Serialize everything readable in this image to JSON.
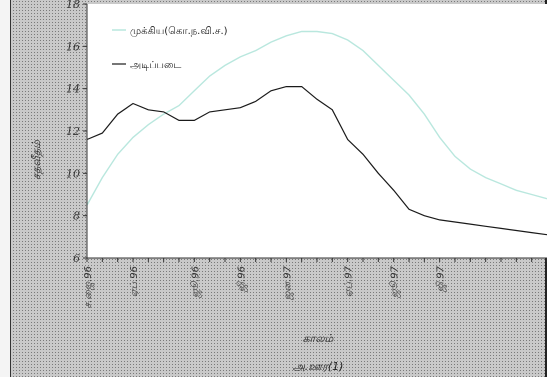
{
  "chart_data": {
    "type": "line",
    "title": "",
    "xlabel": "காலம்",
    "ylabel": "சதவீதம்",
    "caption": "அ.ஊர(1)",
    "ylim": [
      6,
      18
    ],
    "yticks": [
      6,
      8,
      10,
      12,
      14,
      16,
      18
    ],
    "x": [
      0,
      1,
      2,
      3,
      4,
      5,
      6,
      7,
      8,
      9,
      10,
      11,
      12,
      13,
      14,
      15,
      16,
      17,
      18,
      19,
      20,
      21,
      22,
      23,
      24,
      25,
      26,
      27,
      28,
      29,
      30
    ],
    "xtick_positions": [
      0,
      3,
      7,
      10,
      13,
      17,
      20,
      23
    ],
    "xtick_labels": [
      "ச.ஜை.96",
      "ஏப்.96",
      "ஜூ.96",
      "ஜி.96",
      "ஜன.97",
      "ஏப்.97",
      "ஜூ.97",
      "ஜி.97"
    ],
    "legend_position": "top-left",
    "grid": false,
    "series": [
      {
        "name": "முக்கிய(கொ.ந.வி.ச.)",
        "color": "#b9e7de",
        "values": [
          8.5,
          9.8,
          10.9,
          11.7,
          12.3,
          12.8,
          13.2,
          13.9,
          14.6,
          15.1,
          15.5,
          15.8,
          16.2,
          16.5,
          16.7,
          16.7,
          16.6,
          16.3,
          15.8,
          15.1,
          14.4,
          13.7,
          12.8,
          11.7,
          10.8,
          10.2,
          9.8,
          9.5,
          9.2,
          9.0,
          8.8
        ]
      },
      {
        "name": "அடிப்படை",
        "color": "#1a1a1a",
        "values": [
          11.6,
          11.9,
          12.8,
          13.3,
          13.0,
          12.9,
          12.5,
          12.5,
          12.9,
          13.0,
          13.1,
          13.4,
          13.9,
          14.1,
          14.1,
          13.5,
          13.0,
          11.6,
          10.9,
          10.0,
          9.2,
          8.3,
          8.0,
          7.8,
          7.7,
          7.6,
          7.5,
          7.4,
          7.3,
          7.2,
          7.1
        ]
      }
    ]
  }
}
